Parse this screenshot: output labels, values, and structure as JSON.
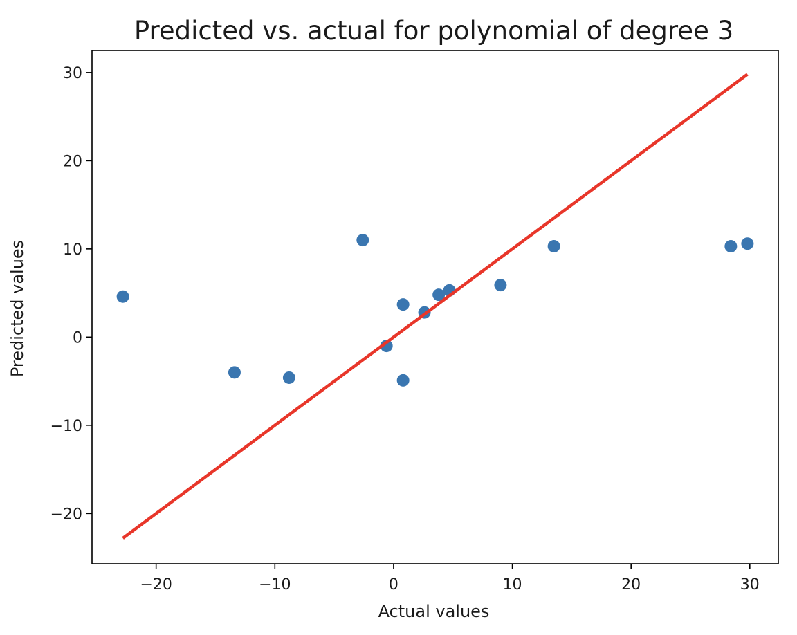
{
  "chart_data": {
    "type": "scatter",
    "title": "Predicted vs. actual for polynomial of degree 3",
    "xlabel": "Actual values",
    "ylabel": "Predicted values",
    "xlim": [
      -25.4,
      32.4
    ],
    "ylim": [
      -25.7,
      32.5
    ],
    "xticks": [
      -20,
      -10,
      0,
      10,
      20,
      30
    ],
    "yticks": [
      -20,
      -10,
      0,
      10,
      20,
      30
    ],
    "xtick_labels": [
      "−20",
      "−10",
      "0",
      "10",
      "20",
      "30"
    ],
    "ytick_labels": [
      "−20",
      "−10",
      "0",
      "10",
      "20",
      "30"
    ],
    "grid": false,
    "series": [
      {
        "name": "predictions",
        "kind": "scatter",
        "color": "#3a76b0",
        "points": [
          {
            "x": -22.8,
            "y": 4.6
          },
          {
            "x": -13.4,
            "y": -4.0
          },
          {
            "x": -8.8,
            "y": -4.6
          },
          {
            "x": -2.6,
            "y": 11.0
          },
          {
            "x": -0.6,
            "y": -1.0
          },
          {
            "x": 0.8,
            "y": 3.7
          },
          {
            "x": 0.8,
            "y": -4.9
          },
          {
            "x": 2.6,
            "y": 2.8
          },
          {
            "x": 3.8,
            "y": 4.8
          },
          {
            "x": 4.7,
            "y": 5.3
          },
          {
            "x": 9.0,
            "y": 5.9
          },
          {
            "x": 13.5,
            "y": 10.3
          },
          {
            "x": 28.4,
            "y": 10.3
          },
          {
            "x": 29.8,
            "y": 10.6
          }
        ]
      },
      {
        "name": "ideal y = x",
        "kind": "line",
        "color": "#e8362a",
        "points": [
          {
            "x": -22.8,
            "y": -22.8
          },
          {
            "x": 29.8,
            "y": 29.8
          }
        ]
      }
    ]
  }
}
